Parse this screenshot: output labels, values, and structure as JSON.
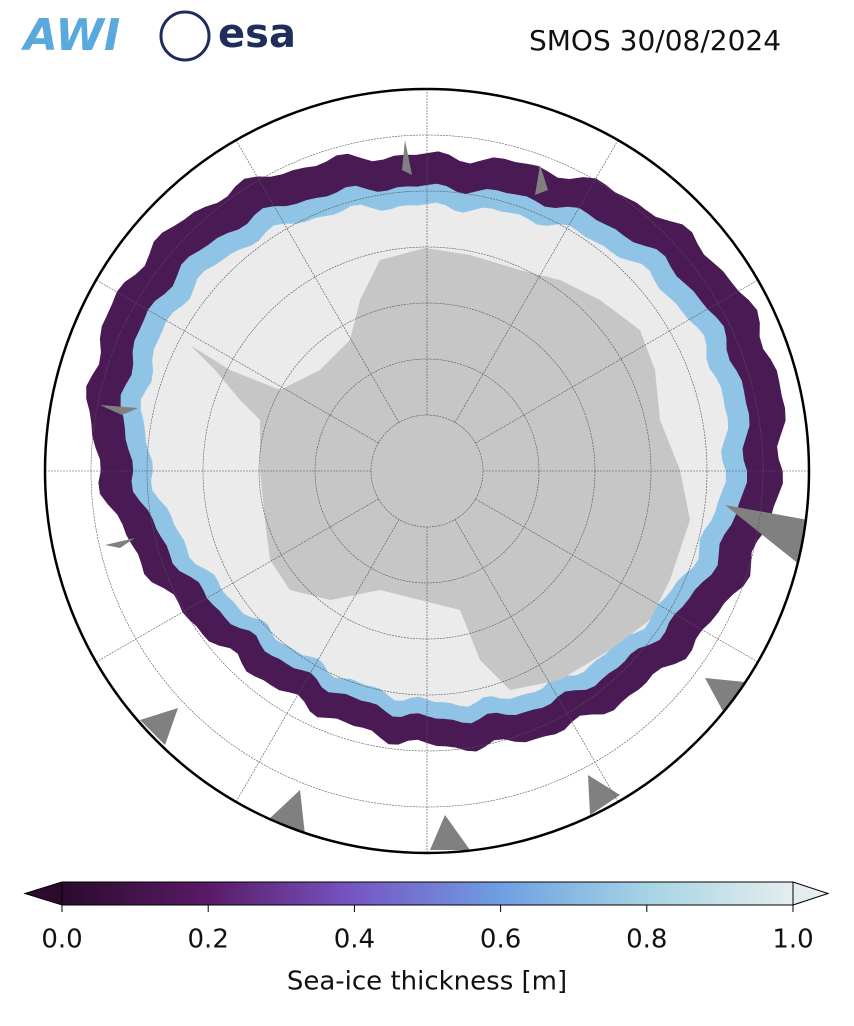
{
  "header": {
    "logos": [
      "AWI",
      "esa"
    ],
    "title": "SMOS 30/08/2024"
  },
  "colorbar": {
    "label": "Sea-ice thickness [m]",
    "lim": [
      0,
      1
    ],
    "colors": [
      "#2b0b2e",
      "#5a1a66",
      "#7656c4",
      "#6e9fe2",
      "#a6d3e4",
      "#e4eeee"
    ],
    "ticks": [
      {
        "value": 0,
        "label": "0.0"
      },
      0.2,
      0.4,
      0.6,
      0.8,
      {
        "value": 1,
        "label": "1.0"
      }
    ]
  }
}
